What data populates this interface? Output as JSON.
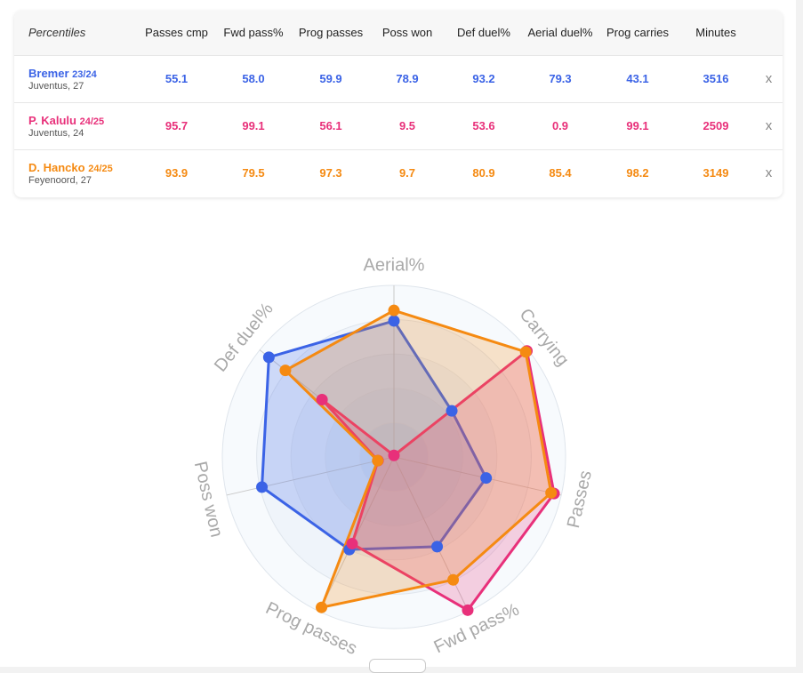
{
  "table": {
    "corner_label": "Percentiles",
    "columns": [
      {
        "key": "passes_cmp",
        "label": "Passes cmp"
      },
      {
        "key": "fwd_pass",
        "label": "Fwd pass%"
      },
      {
        "key": "prog_passes",
        "label": "Prog passes"
      },
      {
        "key": "poss_won",
        "label": "Poss won"
      },
      {
        "key": "def_duel",
        "label": "Def duel%"
      },
      {
        "key": "aerial_duel",
        "label": "Aerial duel%"
      },
      {
        "key": "prog_carries",
        "label": "Prog carries"
      },
      {
        "key": "minutes",
        "label": "Minutes"
      }
    ],
    "rows": [
      {
        "name": "Bremer",
        "season": "23/24",
        "team": "Juventus, 27",
        "color": "#3b63e6",
        "values": [
          "55.1",
          "58.0",
          "59.9",
          "78.9",
          "93.2",
          "79.3",
          "43.1",
          "3516"
        ],
        "remove": "x"
      },
      {
        "name": "P. Kalulu",
        "season": "24/25",
        "team": "Juventus, 24",
        "color": "#e8307a",
        "values": [
          "95.7",
          "99.1",
          "56.1",
          "9.5",
          "53.6",
          "0.9",
          "99.1",
          "2509"
        ],
        "remove": "x"
      },
      {
        "name": "D. Hancko",
        "season": "24/25",
        "team": "Feyenoord, 27",
        "color": "#f58a12",
        "values": [
          "93.9",
          "79.5",
          "97.3",
          "9.7",
          "80.9",
          "85.4",
          "98.2",
          "3149"
        ],
        "remove": "x"
      }
    ]
  },
  "chart_data": {
    "type": "radar",
    "axes": [
      "Aerial%",
      "Carrying",
      "Passes",
      "Fwd pass%",
      "Prog passes",
      "Poss won",
      "Def duel%"
    ],
    "range": [
      0,
      100
    ],
    "series": [
      {
        "name": "Bremer",
        "color": "#3b63e6",
        "values": [
          79.3,
          43.1,
          55.1,
          58.0,
          59.9,
          78.9,
          93.2
        ]
      },
      {
        "name": "P. Kalulu",
        "color": "#e8307a",
        "values": [
          0.9,
          99.1,
          95.7,
          99.1,
          56.1,
          9.5,
          53.6
        ]
      },
      {
        "name": "D. Hancko",
        "color": "#f58a12",
        "values": [
          85.4,
          98.2,
          93.9,
          79.5,
          97.3,
          9.7,
          80.9
        ]
      }
    ]
  }
}
